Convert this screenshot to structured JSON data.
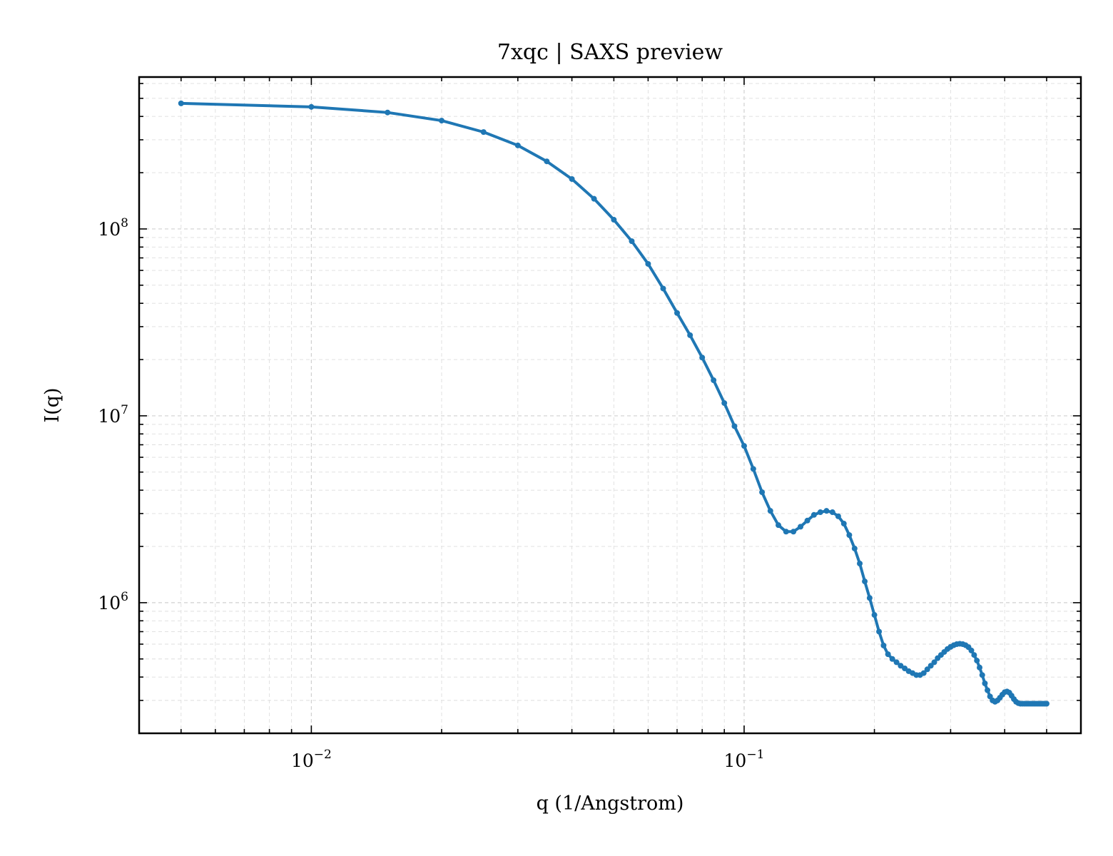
{
  "chart_data": {
    "type": "line",
    "title": "7xqc | SAXS preview",
    "xlabel": "q (1/Angstrom)",
    "ylabel": "I(q)",
    "xscale": "log",
    "yscale": "log",
    "xlim": [
      0.004,
      0.6
    ],
    "ylim": [
      200000,
      650000000
    ],
    "grid": true,
    "legend": "none",
    "line_color": "#1f77b4",
    "x_ticks": [
      {
        "value": 0.01,
        "base": "10",
        "exp": "−2"
      },
      {
        "value": 0.1,
        "base": "10",
        "exp": "−1"
      }
    ],
    "y_ticks": [
      {
        "value": 1000000,
        "base": "10",
        "exp": "6"
      },
      {
        "value": 10000000,
        "base": "10",
        "exp": "7"
      },
      {
        "value": 100000000,
        "base": "10",
        "exp": "8"
      }
    ],
    "series": [
      {
        "marker": "circle",
        "x": [
          0.005,
          0.01,
          0.015,
          0.02,
          0.025,
          0.03,
          0.035,
          0.04,
          0.045,
          0.05,
          0.055,
          0.06,
          0.065,
          0.07,
          0.075,
          0.08,
          0.085,
          0.09,
          0.095,
          0.1,
          0.105,
          0.11,
          0.115,
          0.12,
          0.125,
          0.13,
          0.135,
          0.14,
          0.145,
          0.15,
          0.155,
          0.16,
          0.165,
          0.17,
          0.175,
          0.18,
          0.185,
          0.19,
          0.195,
          0.2,
          0.205,
          0.21,
          0.215,
          0.22,
          0.225,
          0.23,
          0.235,
          0.24,
          0.245,
          0.25,
          0.255,
          0.26,
          0.265,
          0.27,
          0.275,
          0.28,
          0.285,
          0.29,
          0.295,
          0.3,
          0.305,
          0.31,
          0.315,
          0.32,
          0.325,
          0.33,
          0.335,
          0.34,
          0.345,
          0.35,
          0.355,
          0.36,
          0.365,
          0.37,
          0.375,
          0.38,
          0.385,
          0.39,
          0.395,
          0.4,
          0.405,
          0.41,
          0.415,
          0.42,
          0.425,
          0.43,
          0.435,
          0.44,
          0.445,
          0.45,
          0.455,
          0.46,
          0.465,
          0.47,
          0.475,
          0.48,
          0.485,
          0.49,
          0.495,
          0.5
        ],
        "y": [
          470000000,
          450000000,
          420000000,
          380000000,
          330000000,
          280000000,
          230000000,
          185000000,
          145000000,
          112000000,
          86000000,
          65000000,
          48000000,
          35500000,
          27000000,
          20500000,
          15500000,
          11700000,
          8800000,
          6900000,
          5200000,
          3900000,
          3100000,
          2600000,
          2400000,
          2400000,
          2550000,
          2750000,
          2950000,
          3050000,
          3100000,
          3050000,
          2900000,
          2650000,
          2300000,
          1950000,
          1620000,
          1300000,
          1060000,
          860000,
          700000,
          590000,
          530000,
          500000,
          480000,
          460000,
          445000,
          430000,
          420000,
          410000,
          410000,
          420000,
          440000,
          460000,
          480000,
          505000,
          525000,
          545000,
          565000,
          580000,
          592000,
          600000,
          603000,
          600000,
          592000,
          578000,
          555000,
          525000,
          490000,
          450000,
          410000,
          370000,
          340000,
          315000,
          300000,
          295000,
          300000,
          310000,
          322000,
          332000,
          335000,
          330000,
          318000,
          305000,
          295000,
          290000,
          288000,
          288000,
          288000,
          288000,
          288000,
          288000,
          288000,
          288000,
          288000,
          288000,
          288000,
          288000,
          288000,
          288000
        ]
      }
    ]
  }
}
